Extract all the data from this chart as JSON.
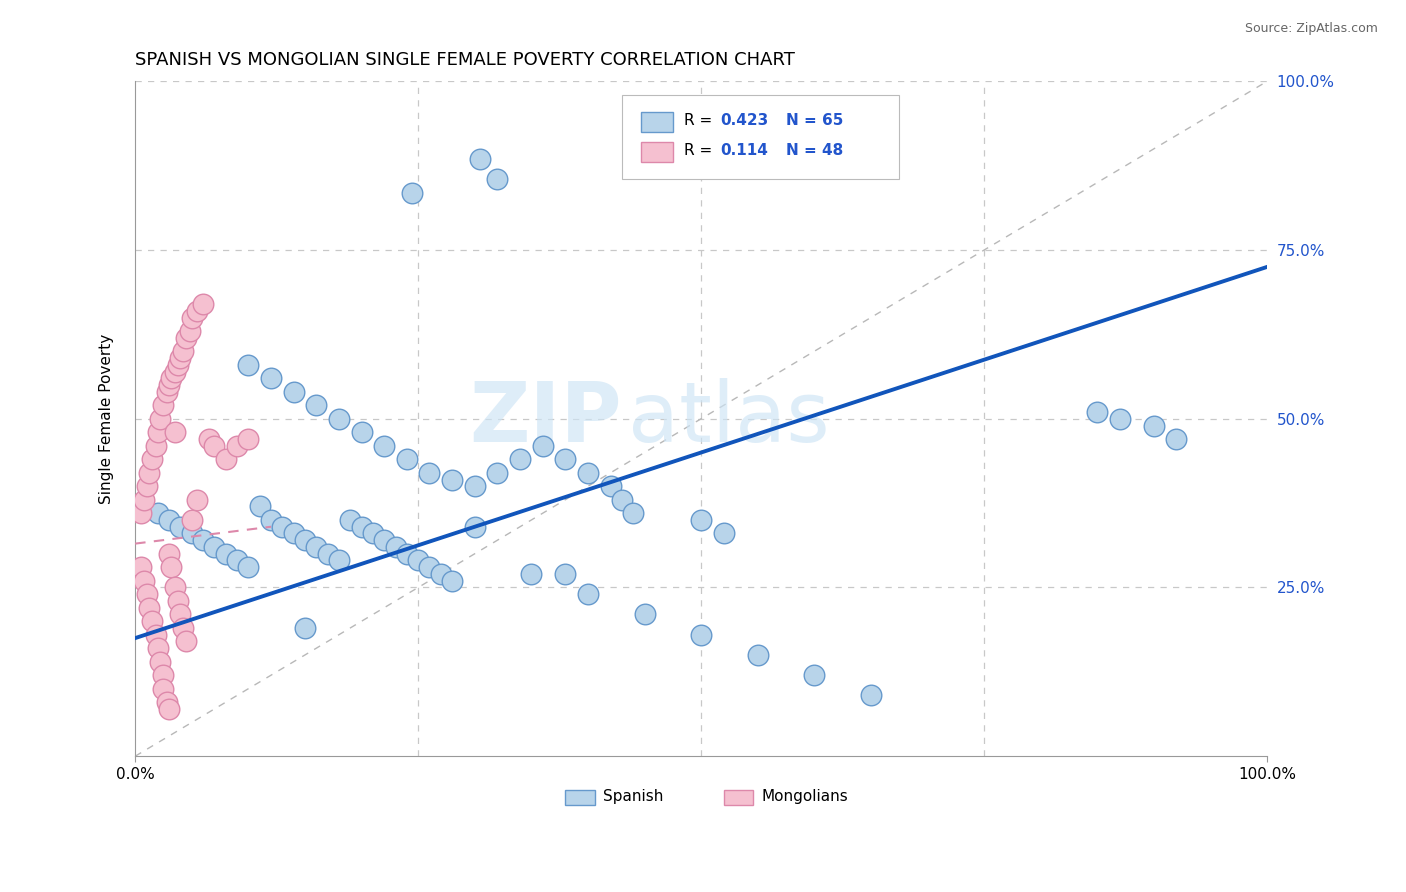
{
  "title": "SPANISH VS MONGOLIAN SINGLE FEMALE POVERTY CORRELATION CHART",
  "source": "Source: ZipAtlas.com",
  "ylabel": "Single Female Poverty",
  "watermark_zip": "ZIP",
  "watermark_atlas": "atlas",
  "xlim": [
    0,
    1.0
  ],
  "ylim": [
    0,
    1.0
  ],
  "blue_color": "#b8d4ea",
  "blue_edge": "#6699cc",
  "blue_line": "#1155bb",
  "pink_color": "#f5c0d0",
  "pink_edge": "#dd88aa",
  "pink_line_color": "#dd88aa",
  "grid_color": "#cccccc",
  "title_fontsize": 13,
  "legend_r1_val": "0.423",
  "legend_n1_val": "N = 65",
  "legend_r2_val": "0.114",
  "legend_n2_val": "N = 48",
  "spanish_x": [
    0.305,
    0.32,
    0.245,
    0.02,
    0.03,
    0.04,
    0.05,
    0.06,
    0.07,
    0.08,
    0.09,
    0.1,
    0.11,
    0.12,
    0.13,
    0.14,
    0.15,
    0.16,
    0.17,
    0.18,
    0.19,
    0.2,
    0.21,
    0.22,
    0.23,
    0.24,
    0.25,
    0.26,
    0.27,
    0.28,
    0.1,
    0.12,
    0.14,
    0.16,
    0.18,
    0.2,
    0.22,
    0.24,
    0.26,
    0.28,
    0.3,
    0.32,
    0.34,
    0.36,
    0.38,
    0.4,
    0.42,
    0.43,
    0.44,
    0.3,
    0.35,
    0.4,
    0.45,
    0.5,
    0.55,
    0.6,
    0.65,
    0.85,
    0.87,
    0.9,
    0.92,
    0.5,
    0.52,
    0.38,
    0.15
  ],
  "spanish_y": [
    0.885,
    0.855,
    0.835,
    0.36,
    0.35,
    0.34,
    0.33,
    0.32,
    0.31,
    0.3,
    0.29,
    0.28,
    0.37,
    0.35,
    0.34,
    0.33,
    0.32,
    0.31,
    0.3,
    0.29,
    0.35,
    0.34,
    0.33,
    0.32,
    0.31,
    0.3,
    0.29,
    0.28,
    0.27,
    0.26,
    0.58,
    0.56,
    0.54,
    0.52,
    0.5,
    0.48,
    0.46,
    0.44,
    0.42,
    0.41,
    0.4,
    0.42,
    0.44,
    0.46,
    0.44,
    0.42,
    0.4,
    0.38,
    0.36,
    0.34,
    0.27,
    0.24,
    0.21,
    0.18,
    0.15,
    0.12,
    0.09,
    0.51,
    0.5,
    0.49,
    0.47,
    0.35,
    0.33,
    0.27,
    0.19
  ],
  "mongolian_x": [
    0.005,
    0.005,
    0.008,
    0.008,
    0.01,
    0.01,
    0.012,
    0.012,
    0.015,
    0.015,
    0.018,
    0.018,
    0.02,
    0.02,
    0.022,
    0.022,
    0.025,
    0.025,
    0.025,
    0.028,
    0.028,
    0.03,
    0.03,
    0.03,
    0.032,
    0.032,
    0.035,
    0.035,
    0.038,
    0.038,
    0.04,
    0.04,
    0.042,
    0.042,
    0.045,
    0.045,
    0.048,
    0.05,
    0.05,
    0.055,
    0.055,
    0.06,
    0.065,
    0.07,
    0.08,
    0.09,
    0.1,
    0.035
  ],
  "mongolian_y": [
    0.36,
    0.28,
    0.38,
    0.26,
    0.4,
    0.24,
    0.42,
    0.22,
    0.44,
    0.2,
    0.46,
    0.18,
    0.48,
    0.16,
    0.5,
    0.14,
    0.52,
    0.12,
    0.1,
    0.54,
    0.08,
    0.55,
    0.3,
    0.07,
    0.56,
    0.28,
    0.57,
    0.25,
    0.58,
    0.23,
    0.59,
    0.21,
    0.6,
    0.19,
    0.62,
    0.17,
    0.63,
    0.65,
    0.35,
    0.66,
    0.38,
    0.67,
    0.47,
    0.46,
    0.44,
    0.46,
    0.47,
    0.48
  ],
  "blue_line_x": [
    0.0,
    1.0
  ],
  "blue_line_y": [
    0.175,
    0.725
  ],
  "pink_line_x": [
    0.0,
    0.12
  ],
  "pink_line_y": [
    0.315,
    0.34
  ],
  "diag_line_x": [
    0.0,
    1.0
  ],
  "diag_line_y": [
    0.0,
    1.0
  ]
}
